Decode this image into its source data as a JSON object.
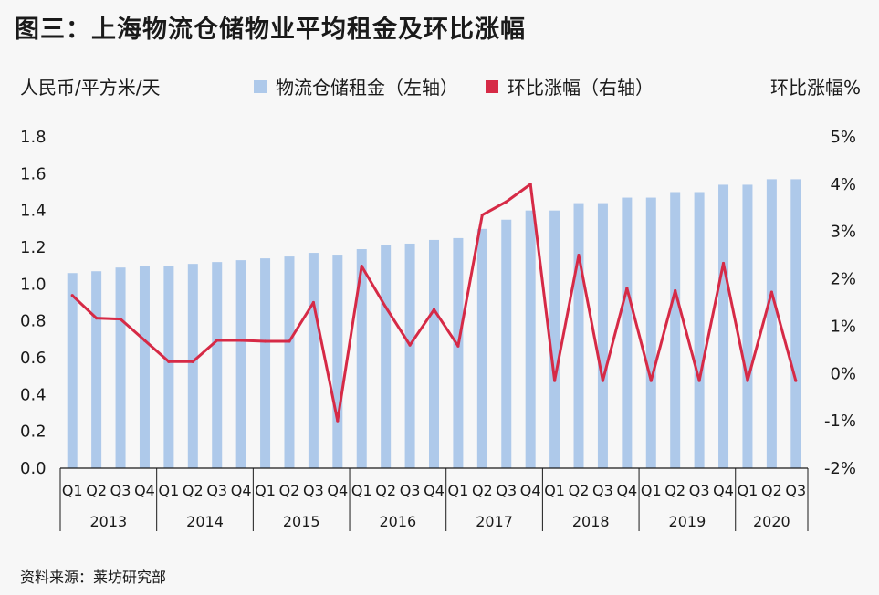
{
  "colors": {
    "bar": "#aec9ea",
    "line": "#d62a46",
    "axis": "#1a1a1a",
    "background": "#f7f7f7"
  },
  "chart_data": {
    "type": "bar",
    "title": "图三：上海物流仓储物业平均租金及环比涨幅",
    "ylabel": "人民币/平方米/天",
    "y2label": "环比涨幅%",
    "ylim": [
      0,
      1.8
    ],
    "yticks": [
      "0.0",
      "0.2",
      "0.4",
      "0.6",
      "0.8",
      "1.0",
      "1.2",
      "1.4",
      "1.6",
      "1.8"
    ],
    "y2lim": [
      -2,
      5
    ],
    "y2ticks": [
      "-2%",
      "-1%",
      "0%",
      "1%",
      "2%",
      "3%",
      "4%",
      "5%"
    ],
    "legend": [
      "物流仓储租金（左轴）",
      "环比涨幅（右轴）"
    ],
    "years": [
      "2013",
      "2014",
      "2015",
      "2016",
      "2017",
      "2018",
      "2019",
      "2020"
    ],
    "categories": [
      "Q1",
      "Q2",
      "Q3",
      "Q4",
      "Q1",
      "Q2",
      "Q3",
      "Q4",
      "Q1",
      "Q2",
      "Q3",
      "Q4",
      "Q1",
      "Q2",
      "Q3",
      "Q4",
      "Q1",
      "Q2",
      "Q3",
      "Q4",
      "Q1",
      "Q2",
      "Q3",
      "Q4",
      "Q1",
      "Q2",
      "Q3",
      "Q4",
      "Q1",
      "Q2",
      "Q3"
    ],
    "series": [
      {
        "name": "物流仓储租金（左轴）",
        "type": "bar",
        "values": [
          1.06,
          1.07,
          1.09,
          1.1,
          1.1,
          1.11,
          1.12,
          1.13,
          1.14,
          1.15,
          1.17,
          1.16,
          1.19,
          1.21,
          1.22,
          1.24,
          1.25,
          1.3,
          1.35,
          1.4,
          1.4,
          1.44,
          1.44,
          1.47,
          1.47,
          1.5,
          1.5,
          1.54,
          1.54,
          1.57,
          1.57
        ]
      },
      {
        "name": "环比涨幅（右轴）",
        "type": "line",
        "values": [
          1.65,
          1.17,
          1.15,
          0.7,
          0.25,
          0.25,
          0.7,
          0.7,
          0.68,
          0.68,
          1.5,
          -1.0,
          2.27,
          1.4,
          0.6,
          1.35,
          0.58,
          3.35,
          3.63,
          4.0,
          -0.15,
          2.5,
          -0.15,
          1.8,
          -0.15,
          1.75,
          -0.15,
          2.33,
          -0.15,
          1.72,
          -0.15
        ]
      }
    ]
  },
  "source": "资料来源：莱坊研究部"
}
